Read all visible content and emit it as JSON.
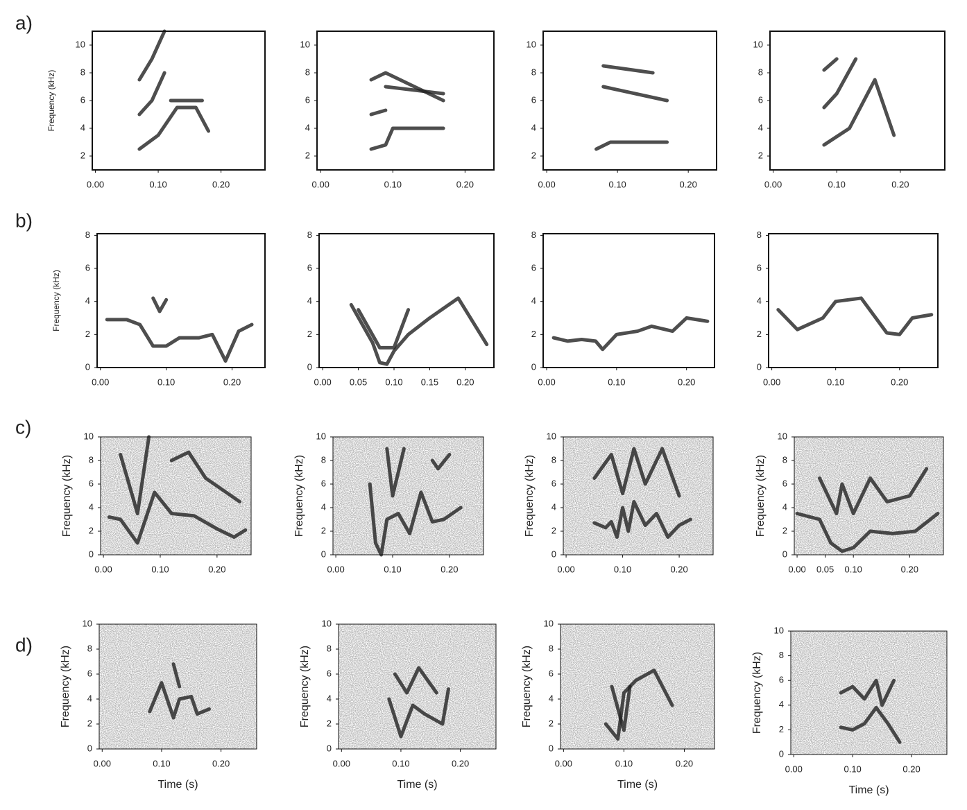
{
  "chart_data": [
    {
      "type": "spectrogram",
      "label": "a)",
      "ylabel": "Frequency (kHz)",
      "xlim": [
        -0.005,
        0.27
      ],
      "ylim": [
        1,
        11
      ],
      "xticks": [
        {
          "value": 0,
          "label": "0.00"
        },
        {
          "value": 0.1,
          "label": "0.10"
        },
        {
          "value": 0.2,
          "label": "0.20"
        }
      ],
      "yticks": [
        2,
        4,
        6,
        8,
        10
      ],
      "color": "#222",
      "series": [
        {
          "x": [
            0.07,
            0.1,
            0.13,
            0.16,
            0.18
          ],
          "y": [
            2.5,
            3.5,
            5.5,
            5.5,
            3.8
          ]
        },
        {
          "x": [
            0.07,
            0.09,
            0.11
          ],
          "y": [
            5,
            6,
            8
          ]
        },
        {
          "x": [
            0.07,
            0.09,
            0.11
          ],
          "y": [
            7.5,
            9,
            11
          ]
        },
        {
          "x": [
            0.12,
            0.17
          ],
          "y": [
            6,
            6
          ]
        }
      ]
    },
    {
      "type": "spectrogram",
      "xlim": [
        -0.005,
        0.24
      ],
      "ylim": [
        1,
        11
      ],
      "xticks": [
        {
          "value": 0,
          "label": "0.00"
        },
        {
          "value": 0.1,
          "label": "0.10"
        },
        {
          "value": 0.2,
          "label": "0.20"
        }
      ],
      "yticks": [
        2,
        4,
        6,
        8,
        10
      ],
      "color": "#222",
      "series": [
        {
          "x": [
            0.07,
            0.09,
            0.1,
            0.17
          ],
          "y": [
            2.5,
            2.8,
            4,
            4
          ]
        },
        {
          "x": [
            0.07,
            0.09
          ],
          "y": [
            5,
            5.3
          ]
        },
        {
          "x": [
            0.07,
            0.09,
            0.17
          ],
          "y": [
            7.5,
            8,
            6
          ]
        },
        {
          "x": [
            0.09,
            0.17
          ],
          "y": [
            7,
            6.5
          ]
        }
      ]
    },
    {
      "type": "spectrogram",
      "xlim": [
        -0.005,
        0.24
      ],
      "ylim": [
        1,
        11
      ],
      "xticks": [
        {
          "value": 0,
          "label": "0.00"
        },
        {
          "value": 0.1,
          "label": "0.10"
        },
        {
          "value": 0.2,
          "label": "0.20"
        }
      ],
      "yticks": [
        2,
        4,
        6,
        8,
        10
      ],
      "color": "#222",
      "series": [
        {
          "x": [
            0.07,
            0.09,
            0.17
          ],
          "y": [
            2.5,
            3,
            3
          ]
        },
        {
          "x": [
            0.08,
            0.17
          ],
          "y": [
            7,
            6
          ]
        },
        {
          "x": [
            0.08,
            0.15
          ],
          "y": [
            8.5,
            8
          ]
        }
      ]
    },
    {
      "type": "spectrogram",
      "xlim": [
        -0.005,
        0.27
      ],
      "ylim": [
        1,
        11
      ],
      "xticks": [
        {
          "value": 0,
          "label": "0.00"
        },
        {
          "value": 0.1,
          "label": "0.10"
        },
        {
          "value": 0.2,
          "label": "0.20"
        }
      ],
      "yticks": [
        2,
        4,
        6,
        8,
        10
      ],
      "color": "#222",
      "series": [
        {
          "x": [
            0.08,
            0.12,
            0.16,
            0.19
          ],
          "y": [
            2.8,
            4,
            7.5,
            3.5
          ]
        },
        {
          "x": [
            0.08,
            0.1,
            0.13
          ],
          "y": [
            5.5,
            6.5,
            9
          ]
        },
        {
          "x": [
            0.08,
            0.1
          ],
          "y": [
            8.2,
            9
          ]
        }
      ]
    },
    {
      "type": "spectrogram",
      "label": "b)",
      "ylabel": "Frequency (kHz)",
      "xlim": [
        -0.005,
        0.25
      ],
      "ylim": [
        0,
        8.1
      ],
      "xticks": [
        {
          "value": 0,
          "label": "0.00"
        },
        {
          "value": 0.1,
          "label": "0.10"
        },
        {
          "value": 0.2,
          "label": "0.20"
        }
      ],
      "yticks": [
        0,
        2,
        4,
        6,
        8
      ],
      "color": "#222",
      "series": [
        {
          "x": [
            0.01,
            0.04,
            0.06,
            0.08,
            0.1,
            0.12,
            0.15,
            0.17,
            0.19,
            0.21,
            0.23
          ],
          "y": [
            2.9,
            2.9,
            2.6,
            1.3,
            1.3,
            1.8,
            1.8,
            2.0,
            0.4,
            2.2,
            2.6
          ]
        },
        {
          "x": [
            0.08,
            0.09,
            0.1
          ],
          "y": [
            4.2,
            3.4,
            4.1
          ]
        }
      ]
    },
    {
      "type": "spectrogram",
      "xlim": [
        -0.005,
        0.24
      ],
      "ylim": [
        0,
        8.1
      ],
      "xticks": [
        {
          "value": 0,
          "label": "0.00"
        },
        {
          "value": 0.05,
          "label": "0.05"
        },
        {
          "value": 0.1,
          "label": "0.10"
        },
        {
          "value": 0.15,
          "label": "0.15"
        },
        {
          "value": 0.2,
          "label": "0.20"
        }
      ],
      "yticks": [
        0,
        2,
        4,
        6,
        8
      ],
      "color": "#222",
      "series": [
        {
          "x": [
            0.04,
            0.07,
            0.08,
            0.09,
            0.1,
            0.12,
            0.15,
            0.19,
            0.23
          ],
          "y": [
            3.8,
            1.5,
            0.3,
            0.2,
            1,
            2,
            3,
            4.2,
            1.4
          ]
        },
        {
          "x": [
            0.05,
            0.08,
            0.1,
            0.12
          ],
          "y": [
            3.5,
            1.2,
            1.2,
            3.5
          ]
        }
      ]
    },
    {
      "type": "spectrogram",
      "xlim": [
        -0.005,
        0.24
      ],
      "ylim": [
        0,
        8.1
      ],
      "xticks": [
        {
          "value": 0,
          "label": "0.00"
        },
        {
          "value": 0.1,
          "label": "0.10"
        },
        {
          "value": 0.2,
          "label": "0.20"
        }
      ],
      "yticks": [
        0,
        2,
        4,
        6,
        8
      ],
      "color": "#222",
      "series": [
        {
          "x": [
            0.01,
            0.03,
            0.05,
            0.07,
            0.08,
            0.1,
            0.13,
            0.15,
            0.18,
            0.2,
            0.23
          ],
          "y": [
            1.8,
            1.6,
            1.7,
            1.6,
            1.1,
            2,
            2.2,
            2.5,
            2.2,
            3,
            2.8
          ]
        }
      ]
    },
    {
      "type": "spectrogram",
      "xlim": [
        -0.005,
        0.26
      ],
      "ylim": [
        0,
        8.1
      ],
      "xticks": [
        {
          "value": 0,
          "label": "0.00"
        },
        {
          "value": 0.1,
          "label": "0.10"
        },
        {
          "value": 0.2,
          "label": "0.20"
        }
      ],
      "yticks": [
        0,
        2,
        4,
        6,
        8
      ],
      "color": "#222",
      "series": [
        {
          "x": [
            0.01,
            0.04,
            0.08,
            0.1,
            0.14,
            0.18,
            0.2,
            0.22,
            0.25
          ],
          "y": [
            3.5,
            2.3,
            3.0,
            4,
            4.2,
            2.1,
            2.0,
            3,
            3.2
          ]
        }
      ]
    },
    {
      "type": "spectrogram",
      "label": "c)",
      "ylabel": "Frequency (kHz)",
      "noise": true,
      "xlim": [
        -0.005,
        0.26
      ],
      "ylim": [
        0,
        10
      ],
      "xticks": [
        {
          "value": 0,
          "label": "0.00"
        },
        {
          "value": 0.1,
          "label": "0.10"
        },
        {
          "value": 0.2,
          "label": "0.20"
        }
      ],
      "yticks": [
        0,
        2,
        4,
        6,
        8,
        10
      ],
      "color": "#222",
      "series": [
        {
          "x": [
            0.01,
            0.03,
            0.06,
            0.09,
            0.12,
            0.16,
            0.2,
            0.23,
            0.25
          ],
          "y": [
            3.2,
            3.0,
            1.0,
            5.3,
            3.5,
            3.3,
            2.2,
            1.5,
            2.1
          ]
        },
        {
          "x": [
            0.03,
            0.06,
            0.08
          ],
          "y": [
            8.5,
            3.5,
            10
          ]
        },
        {
          "x": [
            0.12,
            0.15,
            0.18,
            0.21,
            0.24
          ],
          "y": [
            8,
            8.7,
            6.5,
            5.5,
            4.5
          ]
        }
      ]
    },
    {
      "type": "spectrogram",
      "ylabel": "Frequency (kHz)",
      "noise": true,
      "xlim": [
        -0.005,
        0.26
      ],
      "ylim": [
        0,
        10
      ],
      "xticks": [
        {
          "value": 0,
          "label": "0.00"
        },
        {
          "value": 0.1,
          "label": "0.10"
        },
        {
          "value": 0.2,
          "label": "0.20"
        }
      ],
      "yticks": [
        0,
        2,
        4,
        6,
        8,
        10
      ],
      "color": "#222",
      "series": [
        {
          "x": [
            0.06,
            0.07,
            0.08,
            0.09,
            0.11,
            0.13,
            0.15,
            0.17,
            0.19,
            0.22
          ],
          "y": [
            6,
            1,
            0,
            3,
            3.5,
            1.8,
            5.3,
            2.8,
            3,
            4
          ]
        },
        {
          "x": [
            0.09,
            0.1,
            0.12
          ],
          "y": [
            9,
            5,
            9
          ]
        },
        {
          "x": [
            0.17,
            0.18,
            0.2
          ],
          "y": [
            8,
            7.3,
            8.5
          ]
        }
      ]
    },
    {
      "type": "spectrogram",
      "ylabel": "Frequency (kHz)",
      "noise": true,
      "xlim": [
        -0.005,
        0.26
      ],
      "ylim": [
        0,
        10
      ],
      "xticks": [
        {
          "value": 0,
          "label": "0.00"
        },
        {
          "value": 0.1,
          "label": "0.10"
        },
        {
          "value": 0.2,
          "label": "0.20"
        }
      ],
      "yticks": [
        0,
        2,
        4,
        6,
        8,
        10
      ],
      "color": "#222",
      "series": [
        {
          "x": [
            0.05,
            0.07,
            0.08,
            0.09,
            0.1,
            0.11,
            0.12,
            0.14,
            0.16,
            0.17,
            0.18,
            0.2,
            0.22
          ],
          "y": [
            2.7,
            2.3,
            2.8,
            1.5,
            4,
            2,
            4.5,
            2.5,
            3.5,
            2.5,
            1.5,
            2.5,
            3
          ]
        },
        {
          "x": [
            0.05,
            0.08,
            0.1,
            0.12,
            0.14,
            0.17,
            0.2
          ],
          "y": [
            6.5,
            8.5,
            5.2,
            9,
            6,
            9,
            5
          ]
        }
      ]
    },
    {
      "type": "spectrogram",
      "ylabel": "Frequency (kHz)",
      "noise": true,
      "xlim": [
        -0.005,
        0.26
      ],
      "ylim": [
        0,
        10
      ],
      "xticks": [
        {
          "value": 0,
          "label": "0.00"
        },
        {
          "value": 0.05,
          "label": "0.05"
        },
        {
          "value": 0.1,
          "label": "0.10"
        },
        {
          "value": 0.2,
          "label": "0.20"
        }
      ],
      "yticks": [
        0,
        2,
        4,
        6,
        8,
        10
      ],
      "color": "#222",
      "series": [
        {
          "x": [
            0.0,
            0.04,
            0.06,
            0.08,
            0.1,
            0.13,
            0.17,
            0.21,
            0.25
          ],
          "y": [
            3.5,
            3,
            1,
            0.3,
            0.6,
            2,
            1.8,
            2,
            3.5
          ]
        },
        {
          "x": [
            0.04,
            0.07,
            0.08,
            0.1,
            0.13,
            0.16,
            0.2,
            0.23
          ],
          "y": [
            6.5,
            3.5,
            6,
            3.5,
            6.5,
            4.5,
            5,
            7.3
          ]
        }
      ]
    },
    {
      "type": "spectrogram",
      "label": "d)",
      "ylabel": "Frequency (kHz)",
      "xlabel": "Time (s)",
      "noise": true,
      "xlim": [
        -0.005,
        0.26
      ],
      "ylim": [
        0,
        10
      ],
      "xticks": [
        {
          "value": 0,
          "label": "0.00"
        },
        {
          "value": 0.1,
          "label": "0.10"
        },
        {
          "value": 0.2,
          "label": "0.20"
        }
      ],
      "yticks": [
        0,
        2,
        4,
        6,
        8,
        10
      ],
      "color": "#222",
      "series": [
        {
          "x": [
            0.08,
            0.1,
            0.12,
            0.13,
            0.15,
            0.16,
            0.18
          ],
          "y": [
            3,
            5.3,
            2.5,
            4,
            4.2,
            2.8,
            3.2
          ]
        },
        {
          "x": [
            0.12,
            0.13
          ],
          "y": [
            6.8,
            5
          ]
        }
      ]
    },
    {
      "type": "spectrogram",
      "ylabel": "Frequency (kHz)",
      "xlabel": "Time (s)",
      "noise": true,
      "xlim": [
        -0.005,
        0.26
      ],
      "ylim": [
        0,
        10
      ],
      "xticks": [
        {
          "value": 0,
          "label": "0.00"
        },
        {
          "value": 0.1,
          "label": "0.10"
        },
        {
          "value": 0.2,
          "label": "0.20"
        }
      ],
      "yticks": [
        0,
        2,
        4,
        6,
        8,
        10
      ],
      "color": "#222",
      "series": [
        {
          "x": [
            0.08,
            0.1,
            0.12,
            0.14,
            0.17,
            0.18
          ],
          "y": [
            4,
            1,
            3.5,
            2.8,
            2,
            4.8
          ]
        },
        {
          "x": [
            0.09,
            0.11,
            0.13,
            0.16
          ],
          "y": [
            6,
            4.5,
            6.5,
            4.5
          ]
        }
      ]
    },
    {
      "type": "spectrogram",
      "ylabel": "Frequency (kHz)",
      "xlabel": "Time (s)",
      "noise": true,
      "xlim": [
        -0.005,
        0.25
      ],
      "ylim": [
        0,
        10
      ],
      "xticks": [
        {
          "value": 0,
          "label": "0.00"
        },
        {
          "value": 0.1,
          "label": "0.10"
        },
        {
          "value": 0.2,
          "label": "0.20"
        }
      ],
      "yticks": [
        0,
        2,
        4,
        6,
        8,
        10
      ],
      "color": "#222",
      "series": [
        {
          "x": [
            0.07,
            0.09,
            0.1,
            0.12,
            0.15,
            0.18
          ],
          "y": [
            2,
            0.8,
            4.5,
            5.5,
            6.3,
            3.5
          ]
        },
        {
          "x": [
            0.08,
            0.1,
            0.11
          ],
          "y": [
            5,
            1.5,
            5
          ]
        }
      ]
    },
    {
      "type": "spectrogram",
      "ylabel": "Frequency (kHz)",
      "xlabel": "Time (s)",
      "noise": true,
      "xlim": [
        -0.005,
        0.26
      ],
      "ylim": [
        0,
        10
      ],
      "xticks": [
        {
          "value": 0,
          "label": "0.00"
        },
        {
          "value": 0.1,
          "label": "0.10"
        },
        {
          "value": 0.2,
          "label": "0.20"
        }
      ],
      "yticks": [
        0,
        2,
        4,
        6,
        8,
        10
      ],
      "color": "#222",
      "series": [
        {
          "x": [
            0.08,
            0.1,
            0.12,
            0.14,
            0.16,
            0.18
          ],
          "y": [
            2.2,
            2,
            2.5,
            3.8,
            2.5,
            1
          ]
        },
        {
          "x": [
            0.08,
            0.1,
            0.12,
            0.14,
            0.15,
            0.17
          ],
          "y": [
            5,
            5.5,
            4.5,
            6,
            4,
            6
          ]
        }
      ]
    }
  ]
}
